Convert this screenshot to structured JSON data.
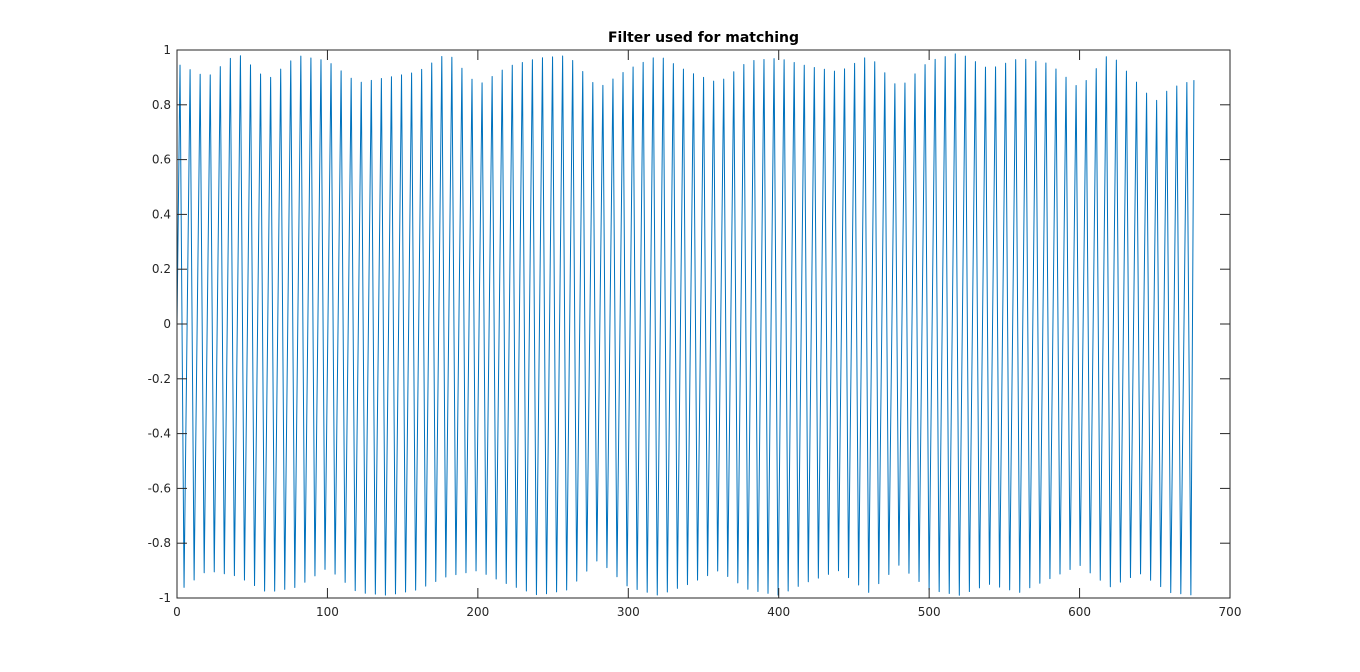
{
  "chart_data": {
    "type": "line",
    "title": "Filter used for matching",
    "xlabel": "",
    "ylabel": "",
    "xlim": [
      0,
      700
    ],
    "ylim": [
      -1,
      1
    ],
    "x_ticks": [
      0,
      100,
      200,
      300,
      400,
      500,
      600,
      700
    ],
    "y_ticks": [
      -1,
      -0.8,
      -0.6,
      -0.4,
      -0.2,
      0,
      0.2,
      0.4,
      0.6,
      0.8,
      1
    ],
    "x_tick_labels": [
      "0",
      "100",
      "200",
      "300",
      "400",
      "500",
      "600",
      "700"
    ],
    "y_tick_labels": [
      "-1",
      "-0.8",
      "-0.6",
      "-0.4",
      "-0.2",
      "0",
      "0.2",
      "0.4",
      "0.6",
      "0.8",
      "1"
    ],
    "grid": false,
    "box": true,
    "series": [
      {
        "color": "#0072BD",
        "x_start": 0,
        "x_end": 676,
        "cycles": 101,
        "initial_value": 0,
        "final_value": 0.89,
        "peak_envelope": [
          [
            0,
            0.95
          ],
          [
            20,
            0.9
          ],
          [
            40,
            0.99
          ],
          [
            60,
            0.89
          ],
          [
            80,
            0.98
          ],
          [
            100,
            0.96
          ],
          [
            120,
            0.88
          ],
          [
            140,
            0.9
          ],
          [
            160,
            0.92
          ],
          [
            180,
            0.99
          ],
          [
            200,
            0.87
          ],
          [
            220,
            0.94
          ],
          [
            240,
            0.97
          ],
          [
            260,
            0.98
          ],
          [
            280,
            0.86
          ],
          [
            300,
            0.93
          ],
          [
            320,
            0.98
          ],
          [
            340,
            0.92
          ],
          [
            360,
            0.88
          ],
          [
            380,
            0.96
          ],
          [
            400,
            0.97
          ],
          [
            420,
            0.94
          ],
          [
            440,
            0.92
          ],
          [
            460,
            0.98
          ],
          [
            480,
            0.86
          ],
          [
            500,
            0.96
          ],
          [
            520,
            0.99
          ],
          [
            540,
            0.93
          ],
          [
            560,
            0.97
          ],
          [
            580,
            0.95
          ],
          [
            600,
            0.86
          ],
          [
            620,
            0.99
          ],
          [
            640,
            0.87
          ],
          [
            650,
            0.81
          ],
          [
            660,
            0.86
          ],
          [
            676,
            0.89
          ]
        ],
        "trough_envelope": [
          [
            0,
            -0.98
          ],
          [
            20,
            -0.9
          ],
          [
            40,
            -0.92
          ],
          [
            60,
            -0.98
          ],
          [
            80,
            -0.96
          ],
          [
            100,
            -0.89
          ],
          [
            120,
            -0.98
          ],
          [
            140,
            -0.99
          ],
          [
            160,
            -0.97
          ],
          [
            180,
            -0.92
          ],
          [
            200,
            -0.9
          ],
          [
            220,
            -0.95
          ],
          [
            240,
            -0.99
          ],
          [
            260,
            -0.97
          ],
          [
            280,
            -0.86
          ],
          [
            300,
            -0.96
          ],
          [
            320,
            -0.99
          ],
          [
            340,
            -0.95
          ],
          [
            360,
            -0.9
          ],
          [
            380,
            -0.97
          ],
          [
            400,
            -0.99
          ],
          [
            420,
            -0.94
          ],
          [
            440,
            -0.9
          ],
          [
            460,
            -0.98
          ],
          [
            480,
            -0.88
          ],
          [
            500,
            -0.97
          ],
          [
            520,
            -0.99
          ],
          [
            540,
            -0.95
          ],
          [
            560,
            -0.98
          ],
          [
            580,
            -0.93
          ],
          [
            600,
            -0.88
          ],
          [
            620,
            -0.96
          ],
          [
            640,
            -0.91
          ],
          [
            660,
            -0.98
          ],
          [
            676,
            -0.99
          ]
        ]
      }
    ]
  }
}
